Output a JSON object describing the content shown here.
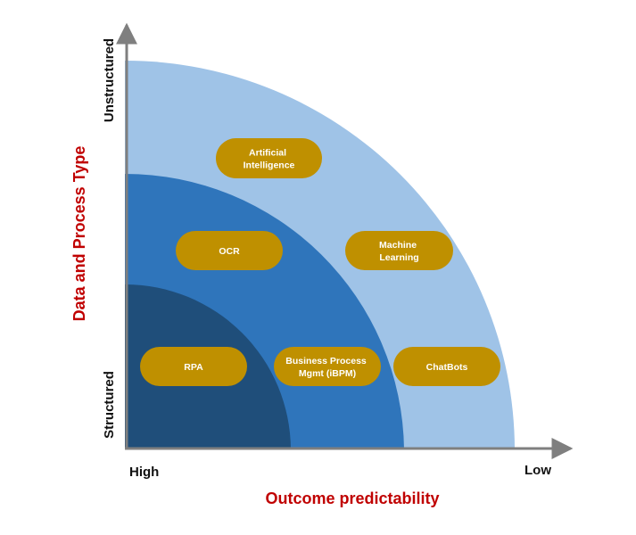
{
  "colors": {
    "outer_band": "#9fc3e7",
    "middle_band": "#2f75bb",
    "inner_band": "#1f4e7a",
    "pill_fill": "#bf9000",
    "pill_text": "#ffffff",
    "axis_line": "#7f7f7f",
    "axis_title": "#c00000"
  },
  "axes": {
    "x_title": "Outcome predictability",
    "x_low_end_label": "High",
    "x_high_end_label": "Low",
    "y_title": "Data and Process Type",
    "y_bottom_label": "Structured",
    "y_top_label": "Unstructured"
  },
  "technologies": [
    {
      "lines": [
        "Artificial",
        "Intelligence"
      ]
    },
    {
      "lines": [
        "OCR"
      ]
    },
    {
      "lines": [
        "Machine",
        "Learning"
      ]
    },
    {
      "lines": [
        "RPA"
      ]
    },
    {
      "lines": [
        "Business Process",
        "Mgmt (iBPM)"
      ]
    },
    {
      "lines": [
        "ChatBots"
      ]
    }
  ]
}
